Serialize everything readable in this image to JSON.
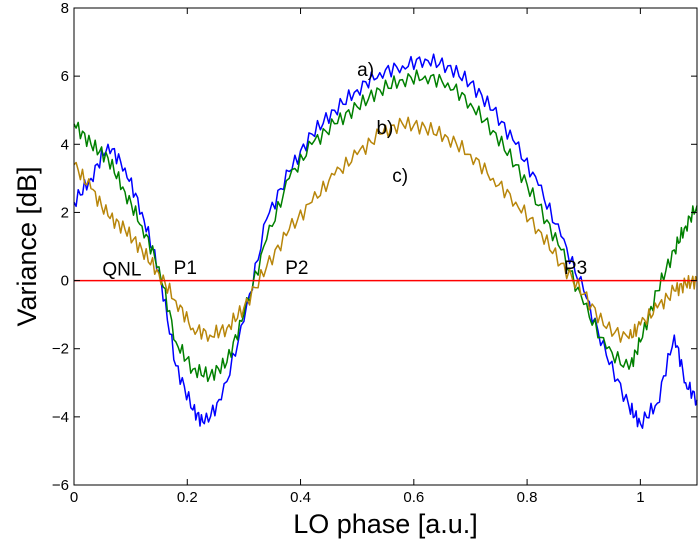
{
  "chart_data": {
    "type": "line",
    "title": "",
    "xlabel": "LO phase [a.u.]",
    "ylabel": "Variance [dB]",
    "xlim": [
      0,
      1.1
    ],
    "ylim": [
      -6,
      8
    ],
    "xticks": [
      0,
      0.2,
      0.4,
      0.6,
      0.8,
      1
    ],
    "xtick_labels": [
      "0",
      "0.2",
      "0.4",
      "0.6",
      "0.8",
      "1"
    ],
    "yticks": [
      -6,
      -4,
      -2,
      0,
      2,
      4,
      6,
      8
    ],
    "ytick_labels": [
      "−6",
      "−4",
      "−2",
      "0",
      "2",
      "4",
      "6",
      "8"
    ],
    "grid": false,
    "legend": "none",
    "colors": {
      "a": "#0000ff",
      "b": "#008000",
      "c": "#b8860b",
      "qnl": "#ff0000"
    },
    "series": [
      {
        "key": "a",
        "x": [
          0,
          0.03,
          0.06,
          0.09,
          0.12,
          0.15,
          0.18,
          0.21,
          0.23,
          0.26,
          0.3,
          0.34,
          0.38,
          0.42,
          0.46,
          0.5,
          0.54,
          0.58,
          0.62,
          0.66,
          0.7,
          0.74,
          0.78,
          0.82,
          0.86,
          0.9,
          0.94,
          0.98,
          1.0,
          1.03,
          1.06,
          1.08,
          1.1
        ],
        "y": [
          2.3,
          3.0,
          4.0,
          3.3,
          2.0,
          0.3,
          -2.5,
          -3.8,
          -4.2,
          -3.5,
          -1.2,
          1.8,
          3.2,
          4.3,
          5.0,
          5.6,
          6.1,
          6.3,
          6.5,
          6.3,
          5.8,
          5.0,
          4.0,
          2.8,
          1.3,
          -0.3,
          -2.2,
          -3.7,
          -4.2,
          -3.6,
          -1.6,
          -3.0,
          -3.5
        ]
      },
      {
        "key": "b",
        "x": [
          0,
          0.03,
          0.06,
          0.09,
          0.12,
          0.15,
          0.18,
          0.21,
          0.24,
          0.27,
          0.3,
          0.34,
          0.38,
          0.42,
          0.46,
          0.5,
          0.54,
          0.58,
          0.62,
          0.66,
          0.7,
          0.74,
          0.78,
          0.82,
          0.86,
          0.9,
          0.94,
          0.98,
          1.0,
          1.03,
          1.06,
          1.08,
          1.1
        ],
        "y": [
          4.6,
          4.0,
          3.6,
          2.6,
          1.6,
          0.4,
          -1.8,
          -2.6,
          -2.8,
          -2.4,
          -1.0,
          1.2,
          3.0,
          4.0,
          4.6,
          5.1,
          5.6,
          5.9,
          6.0,
          5.8,
          5.2,
          4.4,
          3.4,
          2.2,
          0.9,
          -0.7,
          -2.0,
          -2.6,
          -1.8,
          -0.3,
          0.9,
          1.6,
          2.2
        ]
      },
      {
        "key": "c",
        "x": [
          0,
          0.03,
          0.06,
          0.09,
          0.12,
          0.15,
          0.18,
          0.21,
          0.24,
          0.27,
          0.3,
          0.34,
          0.38,
          0.42,
          0.46,
          0.5,
          0.54,
          0.58,
          0.62,
          0.66,
          0.7,
          0.74,
          0.78,
          0.82,
          0.86,
          0.9,
          0.94,
          0.98,
          1.0,
          1.03,
          1.06,
          1.08,
          1.1
        ],
        "y": [
          3.4,
          2.7,
          1.9,
          1.5,
          0.9,
          0.2,
          -0.6,
          -1.4,
          -1.6,
          -1.4,
          -0.8,
          0.4,
          1.5,
          2.3,
          3.1,
          3.7,
          4.3,
          4.6,
          4.5,
          4.2,
          3.7,
          3.0,
          2.3,
          1.5,
          0.5,
          -0.4,
          -1.4,
          -1.7,
          -1.3,
          -0.8,
          -0.3,
          -0.1,
          0.0
        ]
      }
    ],
    "reference_line": {
      "label": "QNL",
      "y": 0
    },
    "annotations": [
      {
        "text": "a)",
        "x": 0.5,
        "y": 6.0
      },
      {
        "text": "b)",
        "x": 0.534,
        "y": 4.3
      },
      {
        "text": "c)",
        "x": 0.562,
        "y": 2.9
      },
      {
        "text": "QNL",
        "x": 0.05,
        "y": 0.15
      },
      {
        "text": "P1",
        "x": 0.176,
        "y": 0.2
      },
      {
        "text": "P2",
        "x": 0.373,
        "y": 0.2
      },
      {
        "text": "P3",
        "x": 0.865,
        "y": 0.2
      }
    ]
  }
}
